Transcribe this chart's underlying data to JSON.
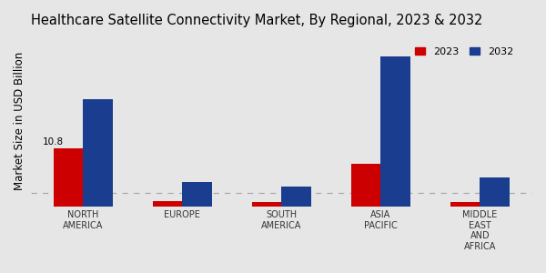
{
  "title": "Healthcare Satellite Connectivity Market, By Regional, 2023 & 2032",
  "ylabel": "Market Size in USD Billion",
  "categories": [
    "NORTH\nAMERICA",
    "EUROPE",
    "SOUTH\nAMERICA",
    "ASIA\nPACIFIC",
    "MIDDLE\nEAST\nAND\nAFRICA"
  ],
  "values_2023": [
    10.8,
    1.0,
    0.8,
    8.0,
    0.9
  ],
  "values_2032": [
    20.0,
    4.5,
    3.8,
    28.0,
    5.5
  ],
  "color_2023": "#cc0000",
  "color_2032": "#1a3d8f",
  "annotation_text": "10.8",
  "annotation_region_idx": 0,
  "background_color": "#e6e6e6",
  "bar_width": 0.3,
  "legend_labels": [
    "2023",
    "2032"
  ],
  "title_fontsize": 10.5,
  "ylabel_fontsize": 8.5,
  "tick_fontsize": 7,
  "bottom_strip_color": "#cc0000",
  "dashed_line_y": 2.5,
  "ylim": [
    0,
    32
  ]
}
